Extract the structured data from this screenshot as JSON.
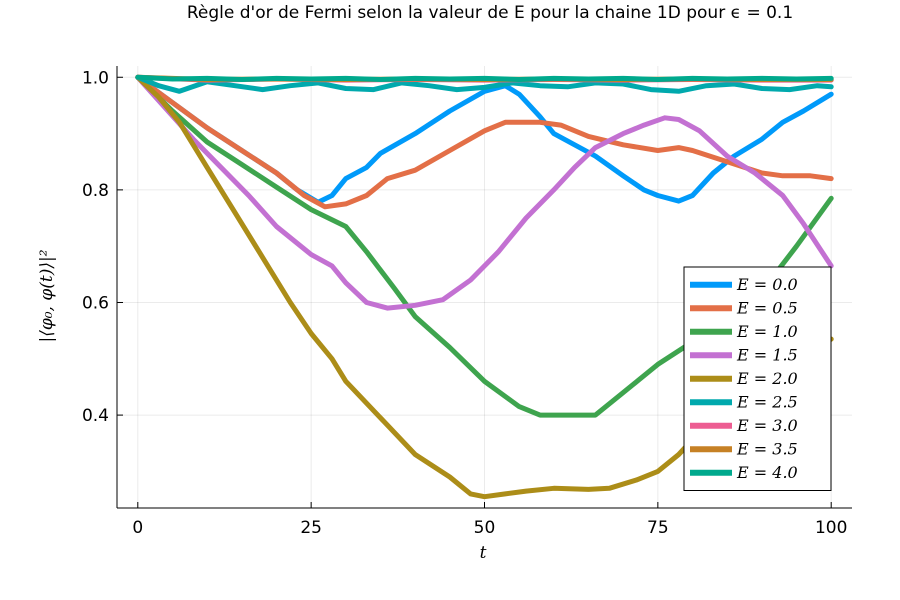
{
  "chart_data": {
    "type": "line",
    "title": "Règle d'or de Fermi selon la valeur de E pour la chaine 1D pour ϵ = 0.1",
    "xlabel": "t",
    "ylabel": "|⟨φ₀, φ(t)⟩|²",
    "xlim": [
      -3,
      103
    ],
    "ylim": [
      0.235,
      1.02
    ],
    "x_ticks": [
      0,
      25,
      50,
      75,
      100
    ],
    "x_tick_labels": [
      "0",
      "25",
      "50",
      "75",
      "100"
    ],
    "y_ticks": [
      0.4,
      0.6,
      0.8,
      1.0
    ],
    "y_tick_labels": [
      "0.4",
      "0.6",
      "0.8",
      "1.0"
    ],
    "grid": true,
    "legend_position": "bottom-right",
    "series": [
      {
        "name": "E = 0.0",
        "color": "#009AFA",
        "points": [
          [
            0,
            1.0
          ],
          [
            5,
            0.955
          ],
          [
            10,
            0.91
          ],
          [
            15,
            0.87
          ],
          [
            20,
            0.83
          ],
          [
            23,
            0.8
          ],
          [
            26,
            0.778
          ],
          [
            28,
            0.79
          ],
          [
            30,
            0.82
          ],
          [
            33,
            0.84
          ],
          [
            35,
            0.865
          ],
          [
            40,
            0.9
          ],
          [
            45,
            0.94
          ],
          [
            50,
            0.975
          ],
          [
            53,
            0.985
          ],
          [
            55,
            0.97
          ],
          [
            58,
            0.93
          ],
          [
            60,
            0.9
          ],
          [
            63,
            0.88
          ],
          [
            66,
            0.86
          ],
          [
            70,
            0.825
          ],
          [
            73,
            0.8
          ],
          [
            75,
            0.79
          ],
          [
            78,
            0.78
          ],
          [
            80,
            0.79
          ],
          [
            83,
            0.83
          ],
          [
            86,
            0.86
          ],
          [
            90,
            0.89
          ],
          [
            93,
            0.92
          ],
          [
            96,
            0.94
          ],
          [
            100,
            0.97
          ]
        ]
      },
      {
        "name": "E = 0.5",
        "color": "#E36F47",
        "points": [
          [
            0,
            1.0
          ],
          [
            5,
            0.955
          ],
          [
            10,
            0.91
          ],
          [
            15,
            0.87
          ],
          [
            20,
            0.83
          ],
          [
            24,
            0.79
          ],
          [
            27,
            0.77
          ],
          [
            30,
            0.775
          ],
          [
            33,
            0.79
          ],
          [
            36,
            0.82
          ],
          [
            40,
            0.835
          ],
          [
            45,
            0.87
          ],
          [
            50,
            0.905
          ],
          [
            53,
            0.92
          ],
          [
            58,
            0.92
          ],
          [
            61,
            0.915
          ],
          [
            65,
            0.895
          ],
          [
            70,
            0.88
          ],
          [
            75,
            0.87
          ],
          [
            78,
            0.875
          ],
          [
            80,
            0.87
          ],
          [
            85,
            0.85
          ],
          [
            90,
            0.83
          ],
          [
            93,
            0.825
          ],
          [
            97,
            0.825
          ],
          [
            100,
            0.82
          ]
        ]
      },
      {
        "name": "E = 1.0",
        "color": "#3EA44E",
        "points": [
          [
            0,
            1.0
          ],
          [
            5,
            0.94
          ],
          [
            10,
            0.885
          ],
          [
            15,
            0.845
          ],
          [
            20,
            0.805
          ],
          [
            25,
            0.765
          ],
          [
            30,
            0.735
          ],
          [
            33,
            0.69
          ],
          [
            37,
            0.625
          ],
          [
            40,
            0.575
          ],
          [
            45,
            0.52
          ],
          [
            50,
            0.46
          ],
          [
            55,
            0.415
          ],
          [
            58,
            0.4
          ],
          [
            62,
            0.4
          ],
          [
            66,
            0.4
          ],
          [
            70,
            0.44
          ],
          [
            75,
            0.49
          ],
          [
            80,
            0.53
          ],
          [
            85,
            0.57
          ],
          [
            90,
            0.62
          ],
          [
            95,
            0.7
          ],
          [
            100,
            0.785
          ]
        ]
      },
      {
        "name": "E = 1.5",
        "color": "#C371D2",
        "points": [
          [
            0,
            1.0
          ],
          [
            4,
            0.945
          ],
          [
            8,
            0.89
          ],
          [
            12,
            0.84
          ],
          [
            16,
            0.79
          ],
          [
            20,
            0.735
          ],
          [
            25,
            0.685
          ],
          [
            28,
            0.665
          ],
          [
            30,
            0.635
          ],
          [
            33,
            0.6
          ],
          [
            36,
            0.59
          ],
          [
            40,
            0.595
          ],
          [
            44,
            0.605
          ],
          [
            48,
            0.64
          ],
          [
            52,
            0.69
          ],
          [
            56,
            0.75
          ],
          [
            60,
            0.8
          ],
          [
            63,
            0.84
          ],
          [
            66,
            0.875
          ],
          [
            70,
            0.9
          ],
          [
            73,
            0.915
          ],
          [
            76,
            0.928
          ],
          [
            78,
            0.925
          ],
          [
            81,
            0.905
          ],
          [
            85,
            0.86
          ],
          [
            89,
            0.83
          ],
          [
            93,
            0.79
          ],
          [
            96,
            0.74
          ],
          [
            100,
            0.665
          ]
        ]
      },
      {
        "name": "E = 2.0",
        "color": "#AC8D18",
        "points": [
          [
            0,
            1.0
          ],
          [
            3,
            0.965
          ],
          [
            6,
            0.92
          ],
          [
            10,
            0.84
          ],
          [
            14,
            0.76
          ],
          [
            18,
            0.68
          ],
          [
            22,
            0.6
          ],
          [
            25,
            0.545
          ],
          [
            28,
            0.5
          ],
          [
            30,
            0.46
          ],
          [
            35,
            0.395
          ],
          [
            40,
            0.33
          ],
          [
            45,
            0.29
          ],
          [
            48,
            0.26
          ],
          [
            50,
            0.255
          ],
          [
            53,
            0.26
          ],
          [
            56,
            0.265
          ],
          [
            60,
            0.27
          ],
          [
            65,
            0.268
          ],
          [
            68,
            0.27
          ],
          [
            72,
            0.285
          ],
          [
            75,
            0.3
          ],
          [
            78,
            0.33
          ],
          [
            81,
            0.37
          ],
          [
            85,
            0.43
          ],
          [
            90,
            0.49
          ],
          [
            95,
            0.51
          ],
          [
            98,
            0.52
          ],
          [
            100,
            0.535
          ]
        ]
      },
      {
        "name": "E = 2.5",
        "color": "#00A9AD",
        "points": [
          [
            0,
            1.0
          ],
          [
            3,
            0.985
          ],
          [
            6,
            0.975
          ],
          [
            10,
            0.992
          ],
          [
            14,
            0.985
          ],
          [
            18,
            0.978
          ],
          [
            22,
            0.985
          ],
          [
            26,
            0.99
          ],
          [
            30,
            0.98
          ],
          [
            34,
            0.978
          ],
          [
            38,
            0.99
          ],
          [
            42,
            0.985
          ],
          [
            46,
            0.978
          ],
          [
            50,
            0.982
          ],
          [
            54,
            0.99
          ],
          [
            58,
            0.985
          ],
          [
            62,
            0.983
          ],
          [
            66,
            0.99
          ],
          [
            70,
            0.988
          ],
          [
            74,
            0.978
          ],
          [
            78,
            0.975
          ],
          [
            82,
            0.985
          ],
          [
            86,
            0.988
          ],
          [
            90,
            0.98
          ],
          [
            94,
            0.978
          ],
          [
            98,
            0.985
          ],
          [
            100,
            0.983
          ]
        ]
      },
      {
        "name": "E = 3.0",
        "color": "#ED5D92",
        "points": [
          [
            0,
            1.0
          ],
          [
            10,
            0.995
          ],
          [
            20,
            0.997
          ],
          [
            30,
            0.995
          ],
          [
            40,
            0.996
          ],
          [
            50,
            0.995
          ],
          [
            60,
            0.996
          ],
          [
            70,
            0.995
          ],
          [
            80,
            0.996
          ],
          [
            90,
            0.995
          ],
          [
            100,
            0.995
          ]
        ]
      },
      {
        "name": "E = 3.5",
        "color": "#C68125",
        "points": [
          [
            0,
            1.0
          ],
          [
            10,
            0.996
          ],
          [
            20,
            0.997
          ],
          [
            30,
            0.996
          ],
          [
            40,
            0.997
          ],
          [
            50,
            0.996
          ],
          [
            60,
            0.997
          ],
          [
            70,
            0.996
          ],
          [
            80,
            0.997
          ],
          [
            90,
            0.996
          ],
          [
            100,
            0.996
          ]
        ]
      },
      {
        "name": "E = 4.0",
        "color": "#00A98D",
        "points": [
          [
            0,
            1.0
          ],
          [
            5,
            0.997
          ],
          [
            10,
            0.998
          ],
          [
            15,
            0.996
          ],
          [
            20,
            0.998
          ],
          [
            25,
            0.997
          ],
          [
            30,
            0.998
          ],
          [
            35,
            0.996
          ],
          [
            40,
            0.998
          ],
          [
            45,
            0.997
          ],
          [
            50,
            0.998
          ],
          [
            55,
            0.996
          ],
          [
            60,
            0.998
          ],
          [
            65,
            0.997
          ],
          [
            70,
            0.998
          ],
          [
            75,
            0.996
          ],
          [
            80,
            0.998
          ],
          [
            85,
            0.997
          ],
          [
            90,
            0.998
          ],
          [
            95,
            0.997
          ],
          [
            100,
            0.998
          ]
        ]
      }
    ]
  }
}
